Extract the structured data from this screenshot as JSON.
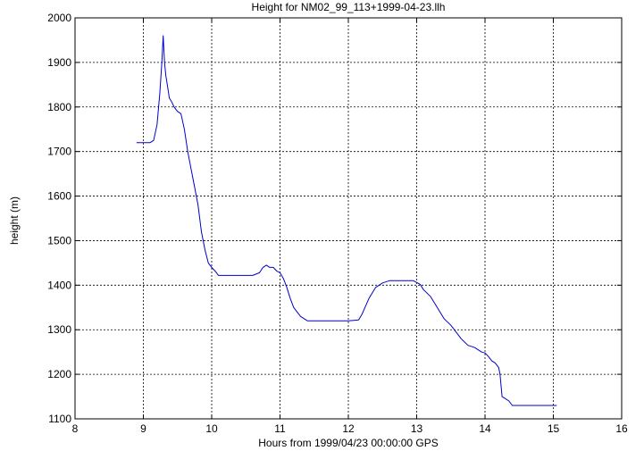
{
  "chart_data": {
    "type": "line",
    "title": "Height for NM02_99_113+1999-04-23.llh",
    "xlabel": "Hours from 1999/04/23 00:00:00 GPS",
    "ylabel": "height (m)",
    "xlim": [
      8,
      16
    ],
    "ylim": [
      1100,
      2000
    ],
    "xticks": [
      "8",
      "9",
      "10",
      "11",
      "12",
      "13",
      "14",
      "15",
      "16"
    ],
    "yticks": [
      "1100",
      "1200",
      "1300",
      "1400",
      "1500",
      "1600",
      "1700",
      "1800",
      "1900",
      "2000"
    ],
    "grid": true,
    "series": [
      {
        "color": "#0000cc",
        "x": [
          8.9,
          9.1,
          9.15,
          9.2,
          9.24,
          9.27,
          9.29,
          9.31,
          9.33,
          9.35,
          9.38,
          9.42,
          9.45,
          9.5,
          9.55,
          9.6,
          9.65,
          9.7,
          9.75,
          9.8,
          9.85,
          9.9,
          9.95,
          10.0,
          10.03,
          10.06,
          10.1,
          10.2,
          10.4,
          10.6,
          10.7,
          10.75,
          10.8,
          10.85,
          10.9,
          10.95,
          11.0,
          11.05,
          11.1,
          11.15,
          11.2,
          11.3,
          11.4,
          11.6,
          11.8,
          12.0,
          12.15,
          12.2,
          12.3,
          12.4,
          12.5,
          12.6,
          12.7,
          12.8,
          12.9,
          12.95,
          13.05,
          13.1,
          13.2,
          13.3,
          13.4,
          13.5,
          13.6,
          13.65,
          13.75,
          13.85,
          13.95,
          14.0,
          14.05,
          14.1,
          14.15,
          14.2,
          14.22,
          14.25,
          14.3,
          14.35,
          14.4,
          14.5,
          14.8,
          15.05
        ],
        "y": [
          1720,
          1720,
          1725,
          1760,
          1830,
          1900,
          1960,
          1900,
          1870,
          1850,
          1820,
          1810,
          1800,
          1790,
          1785,
          1750,
          1700,
          1660,
          1620,
          1580,
          1520,
          1480,
          1450,
          1440,
          1435,
          1430,
          1422,
          1422,
          1422,
          1422,
          1428,
          1440,
          1445,
          1440,
          1440,
          1432,
          1428,
          1415,
          1395,
          1370,
          1350,
          1330,
          1320,
          1320,
          1320,
          1320,
          1322,
          1335,
          1370,
          1395,
          1405,
          1410,
          1410,
          1410,
          1410,
          1410,
          1402,
          1390,
          1375,
          1350,
          1325,
          1310,
          1290,
          1280,
          1265,
          1260,
          1250,
          1248,
          1240,
          1230,
          1225,
          1215,
          1200,
          1150,
          1145,
          1140,
          1130,
          1130,
          1130,
          1130
        ]
      }
    ]
  }
}
